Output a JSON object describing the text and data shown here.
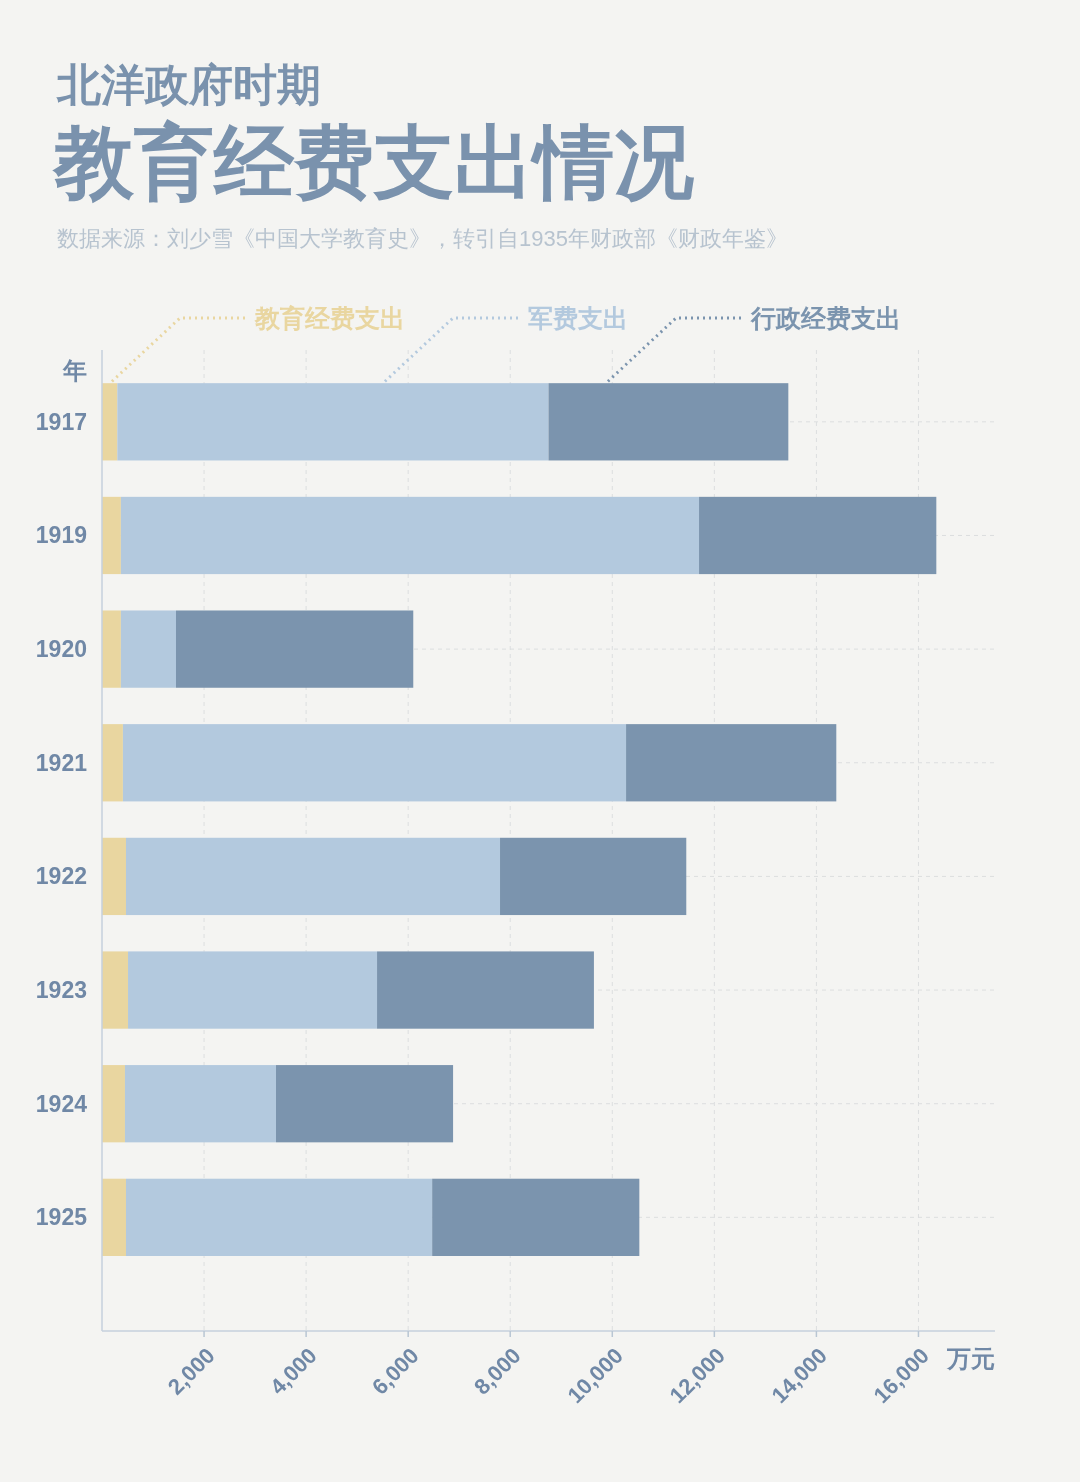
{
  "chart_data": {
    "type": "bar",
    "orientation": "horizontal",
    "stacked": true,
    "subtitle": "北洋政府时期",
    "title": "教育经费支出情况",
    "annotations": [
      "数据来源：刘少雪《中国大学教育史》，转引自1935年财政部《财政年鉴》"
    ],
    "ylabel": "年",
    "xlabel": "万元",
    "categories": [
      "1917",
      "1919",
      "1920",
      "1921",
      "1922",
      "1923",
      "1924",
      "1925"
    ],
    "series": [
      {
        "name": "教育经费支出",
        "color": "#e9d6a0",
        "values": [
          300,
          370,
          370,
          410,
          470,
          510,
          450,
          470
        ]
      },
      {
        "name": "军费支出",
        "color": "#b3c9de",
        "values": [
          8450,
          11330,
          1080,
          9860,
          7330,
          4880,
          2960,
          6000
        ]
      },
      {
        "name": "行政经费支出",
        "color": "#7b94ae",
        "values": [
          4700,
          4650,
          4650,
          4120,
          3650,
          4250,
          3470,
          4060
        ]
      }
    ],
    "xlim": [
      0,
      17500
    ],
    "xticks": [
      {
        "value": 2000,
        "label": "2,000"
      },
      {
        "value": 4000,
        "label": "4,000"
      },
      {
        "value": 6000,
        "label": "6,000"
      },
      {
        "value": 8000,
        "label": "8,000"
      },
      {
        "value": 10000,
        "label": "10,000"
      },
      {
        "value": 12000,
        "label": "12,000"
      },
      {
        "value": 14000,
        "label": "14,000"
      },
      {
        "value": 16000,
        "label": "16,000"
      }
    ],
    "grid": true,
    "legend": "top"
  }
}
